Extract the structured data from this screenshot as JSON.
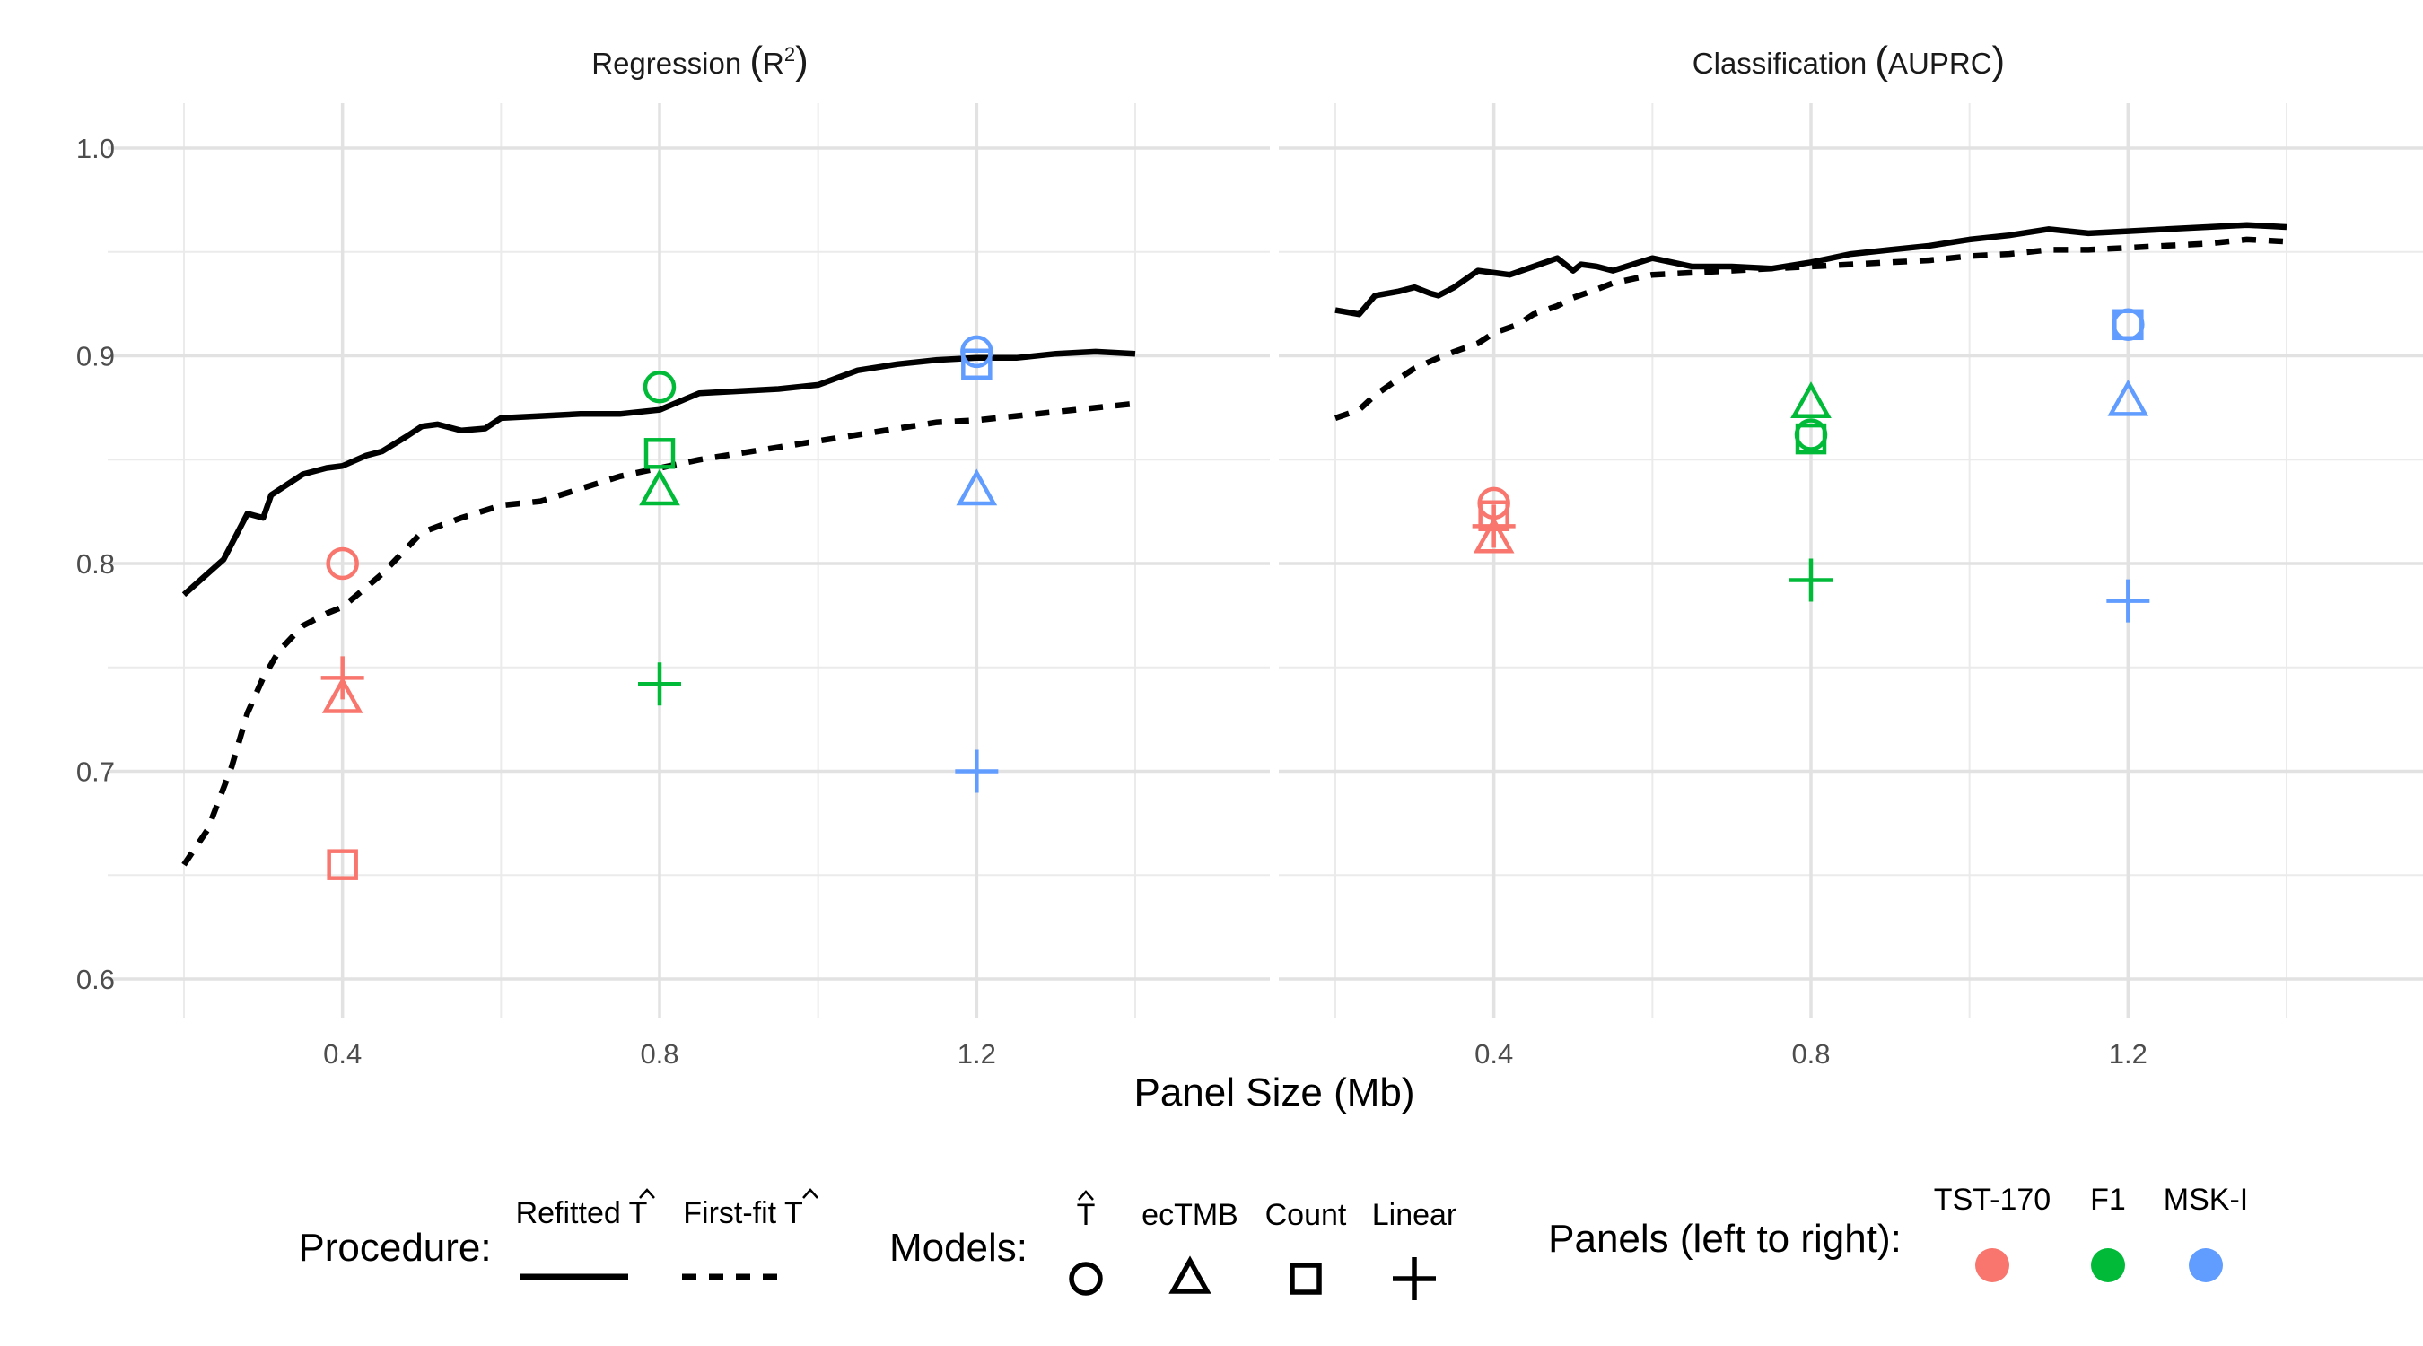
{
  "chart_data": {
    "type": "line",
    "xlabel": "Panel Size (Mb)",
    "facets": [
      {
        "title": "Regression",
        "title_paren": "R",
        "title_sup": "2",
        "xlim": [
          0.2,
          1.4
        ],
        "ylim": [
          0.6,
          1.0
        ],
        "xticks": [
          0.4,
          0.8,
          1.2
        ],
        "yticks": [
          0.6,
          0.7,
          0.8,
          0.9,
          1.0
        ],
        "ytick_labels": [
          "0.6",
          "0.7",
          "0.8",
          "0.9",
          "1.0"
        ],
        "xtick_labels": [
          "0.4",
          "0.8",
          "1.2"
        ],
        "series": [
          {
            "name": "Refitted",
            "style": "solid",
            "x": [
              0.2,
              0.25,
              0.28,
              0.3,
              0.31,
              0.35,
              0.38,
              0.4,
              0.43,
              0.45,
              0.48,
              0.5,
              0.52,
              0.55,
              0.58,
              0.6,
              0.65,
              0.7,
              0.75,
              0.8,
              0.85,
              0.9,
              0.95,
              1.0,
              1.05,
              1.1,
              1.15,
              1.2,
              1.25,
              1.3,
              1.35,
              1.4
            ],
            "y": [
              0.785,
              0.802,
              0.824,
              0.822,
              0.833,
              0.843,
              0.846,
              0.847,
              0.852,
              0.854,
              0.861,
              0.866,
              0.867,
              0.864,
              0.865,
              0.87,
              0.871,
              0.872,
              0.872,
              0.874,
              0.882,
              0.883,
              0.884,
              0.886,
              0.893,
              0.896,
              0.898,
              0.899,
              0.899,
              0.901,
              0.902,
              0.901
            ]
          },
          {
            "name": "First-fit",
            "style": "dashed",
            "x": [
              0.2,
              0.23,
              0.26,
              0.28,
              0.3,
              0.32,
              0.35,
              0.38,
              0.4,
              0.45,
              0.5,
              0.55,
              0.6,
              0.65,
              0.7,
              0.75,
              0.8,
              0.85,
              0.9,
              0.95,
              1.0,
              1.05,
              1.1,
              1.15,
              1.2,
              1.25,
              1.3,
              1.35,
              1.4
            ],
            "y": [
              0.655,
              0.672,
              0.702,
              0.728,
              0.745,
              0.758,
              0.77,
              0.776,
              0.779,
              0.795,
              0.815,
              0.822,
              0.828,
              0.83,
              0.836,
              0.842,
              0.846,
              0.85,
              0.853,
              0.856,
              0.859,
              0.862,
              0.865,
              0.868,
              0.869,
              0.871,
              0.873,
              0.875,
              0.877
            ]
          }
        ],
        "points": [
          {
            "panel": "TST-170",
            "model": "T-hat",
            "x": 0.4,
            "y": 0.8
          },
          {
            "panel": "TST-170",
            "model": "ecTMB",
            "x": 0.4,
            "y": 0.735
          },
          {
            "panel": "TST-170",
            "model": "Count",
            "x": 0.4,
            "y": 0.655
          },
          {
            "panel": "TST-170",
            "model": "Linear",
            "x": 0.4,
            "y": 0.745
          },
          {
            "panel": "F1",
            "model": "T-hat",
            "x": 0.8,
            "y": 0.885
          },
          {
            "panel": "F1",
            "model": "ecTMB",
            "x": 0.8,
            "y": 0.835
          },
          {
            "panel": "F1",
            "model": "Count",
            "x": 0.8,
            "y": 0.853
          },
          {
            "panel": "F1",
            "model": "Linear",
            "x": 0.8,
            "y": 0.742
          },
          {
            "panel": "MSK-I",
            "model": "T-hat",
            "x": 1.2,
            "y": 0.902
          },
          {
            "panel": "MSK-I",
            "model": "ecTMB",
            "x": 1.2,
            "y": 0.835
          },
          {
            "panel": "MSK-I",
            "model": "Count",
            "x": 1.2,
            "y": 0.896
          },
          {
            "panel": "MSK-I",
            "model": "Linear",
            "x": 1.2,
            "y": 0.7
          }
        ]
      },
      {
        "title": "Classification",
        "title_paren": "AUPRC",
        "title_sup": "",
        "xlim": [
          0.2,
          1.4
        ],
        "ylim": [
          0.6,
          1.0
        ],
        "xticks": [
          0.4,
          0.8,
          1.2
        ],
        "yticks": [
          0.6,
          0.7,
          0.8,
          0.9,
          1.0
        ],
        "ytick_labels": [
          "0.6",
          "0.7",
          "0.8",
          "0.9",
          "1.0"
        ],
        "xtick_labels": [
          "0.4",
          "0.8",
          "1.2"
        ],
        "series": [
          {
            "name": "Refitted",
            "style": "solid",
            "x": [
              0.2,
              0.23,
              0.25,
              0.28,
              0.3,
              0.32,
              0.33,
              0.35,
              0.38,
              0.4,
              0.42,
              0.45,
              0.48,
              0.5,
              0.51,
              0.53,
              0.55,
              0.6,
              0.65,
              0.7,
              0.75,
              0.8,
              0.85,
              0.9,
              0.95,
              1.0,
              1.05,
              1.1,
              1.15,
              1.2,
              1.25,
              1.3,
              1.35,
              1.4
            ],
            "y": [
              0.922,
              0.92,
              0.929,
              0.931,
              0.933,
              0.93,
              0.929,
              0.933,
              0.941,
              0.94,
              0.939,
              0.943,
              0.947,
              0.941,
              0.944,
              0.943,
              0.941,
              0.947,
              0.943,
              0.943,
              0.942,
              0.945,
              0.949,
              0.951,
              0.953,
              0.956,
              0.958,
              0.961,
              0.959,
              0.96,
              0.961,
              0.962,
              0.963,
              0.962
            ]
          },
          {
            "name": "First-fit",
            "style": "dashed",
            "x": [
              0.2,
              0.23,
              0.25,
              0.28,
              0.3,
              0.33,
              0.35,
              0.38,
              0.4,
              0.43,
              0.45,
              0.48,
              0.5,
              0.53,
              0.55,
              0.6,
              0.65,
              0.7,
              0.75,
              0.8,
              0.85,
              0.9,
              0.95,
              1.0,
              1.05,
              1.1,
              1.15,
              1.2,
              1.25,
              1.3,
              1.35,
              1.4
            ],
            "y": [
              0.87,
              0.874,
              0.881,
              0.889,
              0.894,
              0.899,
              0.902,
              0.906,
              0.911,
              0.915,
              0.92,
              0.924,
              0.928,
              0.932,
              0.935,
              0.939,
              0.94,
              0.941,
              0.942,
              0.943,
              0.944,
              0.945,
              0.946,
              0.948,
              0.949,
              0.951,
              0.951,
              0.952,
              0.953,
              0.954,
              0.956,
              0.955
            ]
          }
        ],
        "points": [
          {
            "panel": "TST-170",
            "model": "T-hat",
            "x": 0.4,
            "y": 0.829
          },
          {
            "panel": "TST-170",
            "model": "ecTMB",
            "x": 0.4,
            "y": 0.812
          },
          {
            "panel": "TST-170",
            "model": "Count",
            "x": 0.4,
            "y": 0.823
          },
          {
            "panel": "TST-170",
            "model": "Linear",
            "x": 0.4,
            "y": 0.818
          },
          {
            "panel": "F1",
            "model": "T-hat",
            "x": 0.8,
            "y": 0.862
          },
          {
            "panel": "F1",
            "model": "ecTMB",
            "x": 0.8,
            "y": 0.877
          },
          {
            "panel": "F1",
            "model": "Count",
            "x": 0.8,
            "y": 0.86
          },
          {
            "panel": "F1",
            "model": "Linear",
            "x": 0.8,
            "y": 0.792
          },
          {
            "panel": "MSK-I",
            "model": "T-hat",
            "x": 1.2,
            "y": 0.915
          },
          {
            "panel": "MSK-I",
            "model": "ecTMB",
            "x": 1.2,
            "y": 0.878
          },
          {
            "panel": "MSK-I",
            "model": "Count",
            "x": 1.2,
            "y": 0.915
          },
          {
            "panel": "MSK-I",
            "model": "Linear",
            "x": 1.2,
            "y": 0.782
          }
        ]
      }
    ],
    "colors": {
      "TST-170": "#F8766D",
      "F1": "#00BA38",
      "MSK-I": "#619CFF"
    }
  },
  "legend": {
    "procedure_title": "Procedure:",
    "procedure_items": [
      {
        "label": "Refitted",
        "symbol": "T",
        "style": "solid"
      },
      {
        "label": "First-fit",
        "symbol": "T",
        "style": "dashed"
      }
    ],
    "models_title": "Models:",
    "model_items": [
      {
        "label": "T",
        "hat": true,
        "shape": "circle"
      },
      {
        "label": "ecTMB",
        "hat": false,
        "shape": "triangle"
      },
      {
        "label": "Count",
        "hat": false,
        "shape": "square"
      },
      {
        "label": "Linear",
        "hat": false,
        "shape": "plus"
      }
    ],
    "panels_title": "Panels (left to right):",
    "panel_items": [
      {
        "label": "TST-170",
        "color": "#F8766D"
      },
      {
        "label": "F1",
        "color": "#00BA38"
      },
      {
        "label": "MSK-I",
        "color": "#619CFF"
      }
    ]
  }
}
